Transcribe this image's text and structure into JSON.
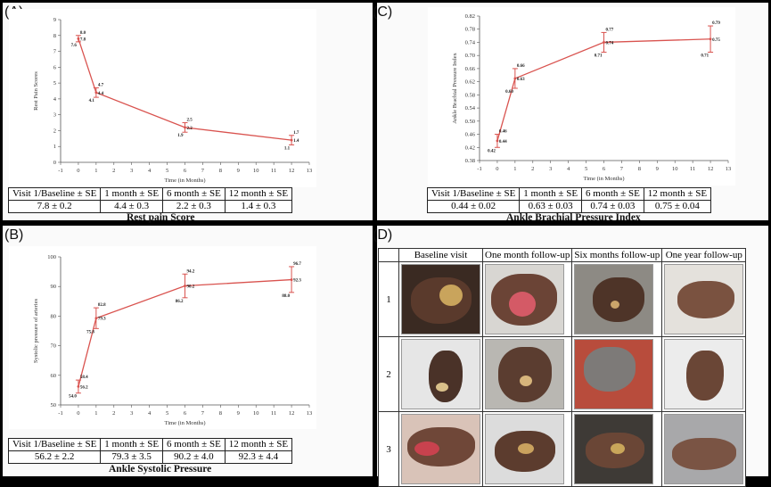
{
  "panels": {
    "a": {
      "letter": "(A)",
      "caption": "Rest pain Score",
      "header": [
        "Visit 1/Baseline ± SE",
        "1 month ± SE",
        "6 month ± SE",
        "12 month ± SE"
      ],
      "values": [
        "7.8 ± 0.2",
        "4.4 ± 0.3",
        "2.2 ± 0.3",
        "1.4 ± 0.3"
      ]
    },
    "b": {
      "letter": "(B)",
      "caption": "Ankle Systolic Pressure",
      "header": [
        "Visit 1/Baseline ± SE",
        "1 month ± SE",
        "6 month ± SE",
        "12 month ± SE"
      ],
      "values": [
        "56.2 ± 2.2",
        "79.3 ± 3.5",
        "90.2 ± 4.0",
        "92.3 ± 4.4"
      ]
    },
    "c": {
      "letter": "(C)",
      "caption": "Ankle Brachial Pressure Index",
      "header": [
        "Visit 1/Baseline ± SE",
        "1 month ± SE",
        "6 month ± SE",
        "12 month ± SE"
      ],
      "values": [
        "0.44 ± 0.02",
        "0.63 ± 0.03",
        "0.74 ± 0.03",
        "0.75 ± 0.04"
      ]
    },
    "d": {
      "letter": "(D)",
      "columns": [
        "Baseline visit",
        "One month follow-up",
        "Six months follow-up",
        "One year follow-up"
      ],
      "rows": [
        "1",
        "2",
        "3"
      ]
    }
  },
  "colors": {
    "line": "#d9534f",
    "axis": "#444444"
  },
  "chart_data": [
    {
      "id": "a",
      "type": "line",
      "xlabel": "Time (in Months)",
      "ylabel": "Rest Pain Scores",
      "xlim": [
        -1,
        13
      ],
      "ylim": [
        0,
        9
      ],
      "xticks": [
        -1,
        0,
        1,
        2,
        3,
        4,
        5,
        6,
        7,
        8,
        9,
        10,
        11,
        12,
        13
      ],
      "yticks": [
        0,
        1,
        2,
        3,
        4,
        5,
        6,
        7,
        8,
        9
      ],
      "x": [
        0,
        1,
        6,
        12
      ],
      "y": [
        7.8,
        4.4,
        2.2,
        1.4
      ],
      "err_low": [
        7.6,
        4.1,
        1.9,
        1.1
      ],
      "err_high": [
        8.0,
        4.7,
        2.5,
        1.7
      ],
      "labels": [
        [
          "8.0",
          "7.6"
        ],
        [
          "4.7",
          "4.1"
        ],
        [
          "2.5",
          "1.9"
        ],
        [
          "1.7",
          "1.1"
        ]
      ],
      "center_labels": [
        "7.8",
        "4.4",
        "2.2",
        "1.4"
      ]
    },
    {
      "id": "b",
      "type": "line",
      "xlabel": "Time (in Months)",
      "ylabel": "Systolic pressure of arteries",
      "xlim": [
        -1,
        13
      ],
      "ylim": [
        50,
        100
      ],
      "xticks": [
        -1,
        0,
        1,
        2,
        3,
        4,
        5,
        6,
        7,
        8,
        9,
        10,
        11,
        12,
        13
      ],
      "yticks": [
        50,
        60,
        70,
        80,
        90,
        100
      ],
      "x": [
        0,
        1,
        6,
        12
      ],
      "y": [
        56.2,
        79.3,
        90.2,
        92.3
      ],
      "err_low": [
        54.0,
        75.8,
        86.2,
        88.0
      ],
      "err_high": [
        58.4,
        82.8,
        94.2,
        96.7
      ],
      "labels": [
        [
          "58.4",
          "54.0"
        ],
        [
          "82.8",
          "75.8"
        ],
        [
          "94.2",
          "86.2"
        ],
        [
          "96.7",
          "88.0"
        ]
      ],
      "center_labels": [
        "56.2",
        "79.3",
        "90.2",
        "92.3"
      ]
    },
    {
      "id": "c",
      "type": "line",
      "xlabel": "Time (in Months)",
      "ylabel": "Ankle Brachial Pressure Index",
      "xlim": [
        -1,
        13
      ],
      "ylim": [
        0.38,
        0.82
      ],
      "xticks": [
        -1,
        0,
        1,
        2,
        3,
        4,
        5,
        6,
        7,
        8,
        9,
        10,
        11,
        12,
        13
      ],
      "yticks": [
        0.38,
        0.42,
        0.46,
        0.5,
        0.54,
        0.58,
        0.62,
        0.66,
        0.7,
        0.74,
        0.78,
        0.82
      ],
      "x": [
        0,
        1,
        6,
        12
      ],
      "y": [
        0.44,
        0.63,
        0.74,
        0.75
      ],
      "err_low": [
        0.42,
        0.6,
        0.71,
        0.71
      ],
      "err_high": [
        0.46,
        0.66,
        0.77,
        0.79
      ],
      "labels": [
        [
          "0.46",
          "0.42"
        ],
        [
          "0.66",
          "0.60"
        ],
        [
          "0.77",
          "0.71"
        ],
        [
          "0.79",
          "0.71"
        ]
      ],
      "center_labels": [
        "0.44",
        "0.63",
        "0.74",
        "0.75"
      ]
    }
  ]
}
